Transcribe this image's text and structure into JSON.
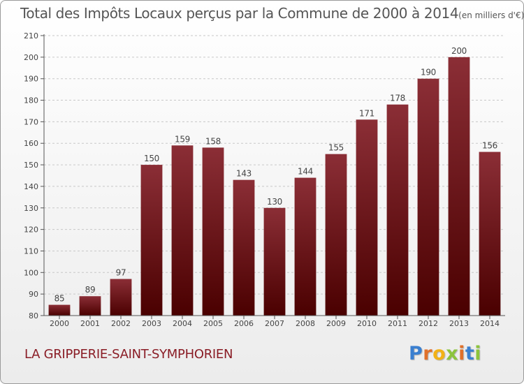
{
  "chart_data": {
    "type": "bar",
    "title": "Total des Impôts Locaux perçus par la Commune de 2000 à 2014",
    "unit_note": "(en milliers d'€)",
    "categories": [
      "2000",
      "2001",
      "2002",
      "2003",
      "2004",
      "2005",
      "2006",
      "2007",
      "2008",
      "2009",
      "2010",
      "2011",
      "2012",
      "2013",
      "2014"
    ],
    "values": [
      85,
      89,
      97,
      150,
      159,
      158,
      143,
      130,
      144,
      155,
      171,
      178,
      190,
      200,
      156
    ],
    "ylim": [
      80,
      210
    ],
    "yticks": [
      "80",
      "90",
      "100",
      "110",
      "120",
      "130",
      "140",
      "150",
      "160",
      "170",
      "180",
      "190",
      "200",
      "210"
    ],
    "xlabel": "",
    "ylabel": "",
    "grid": "horizontal dashed",
    "bar_color_top": "#8b2e36",
    "bar_color_bottom": "#4a0000"
  },
  "footer": {
    "commune": "LA GRIPPERIE-SAINT-SYMPHORIEN"
  },
  "logo": {
    "letters": [
      "P",
      "r",
      "o",
      "x",
      "i",
      "t",
      "i"
    ],
    "colors": [
      "#3a7fd0",
      "#e0702a",
      "#f2b216",
      "#8cc43c",
      "#e0702a",
      "#3a7fd0",
      "#8cc43c"
    ]
  }
}
